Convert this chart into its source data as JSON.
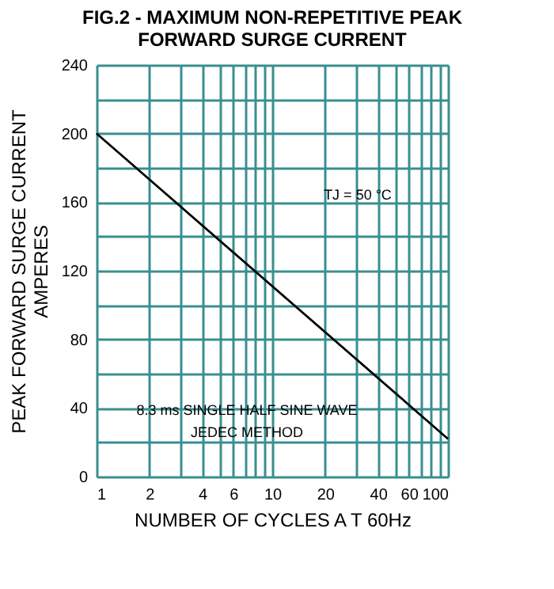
{
  "chart_data": {
    "type": "line",
    "title": "FIG.2 - MAXIMUM NON-REPETITIVE PEAK\nFORWARD SURGE CURRENT",
    "xlabel": "NUMBER OF CYCLES A T 60Hz",
    "ylabel": "PEAK FORWARD SURGE CURRENT\nAMPERES",
    "x": [
      1,
      100
    ],
    "series": [
      {
        "color": "#000000",
        "values": [
          200,
          22
        ]
      }
    ],
    "log": "x",
    "xlim": [
      1,
      100
    ],
    "ylim": [
      0,
      240
    ],
    "xticks": [
      1,
      2,
      {
        "value": 3,
        "label": null
      },
      4,
      {
        "value": 5,
        "label": null
      },
      6,
      {
        "value": 7,
        "label": null
      },
      {
        "value": 8,
        "label": null
      },
      {
        "value": 9,
        "label": null
      },
      10,
      20,
      {
        "value": 30,
        "label": null
      },
      40,
      {
        "value": 50,
        "label": null
      },
      60,
      {
        "value": 70,
        "label": null
      },
      {
        "value": 80,
        "label": null
      },
      {
        "value": 90,
        "label": null
      },
      100
    ],
    "yticks": [
      0,
      {
        "value": 20,
        "label": null
      },
      40,
      {
        "value": 60,
        "label": null
      },
      80,
      {
        "value": 100,
        "label": null
      },
      120,
      {
        "value": 140,
        "label": null
      },
      160,
      {
        "value": 180,
        "label": null
      },
      200,
      {
        "value": 220,
        "label": null
      },
      240
    ],
    "grid": true,
    "legend": false,
    "marker": "none",
    "line_style": "solid",
    "annotations": [
      "TJ = 50 °C",
      "8.3 ms SINGLE HALF SINE WAVE\nJEDEC METHOD"
    ]
  }
}
